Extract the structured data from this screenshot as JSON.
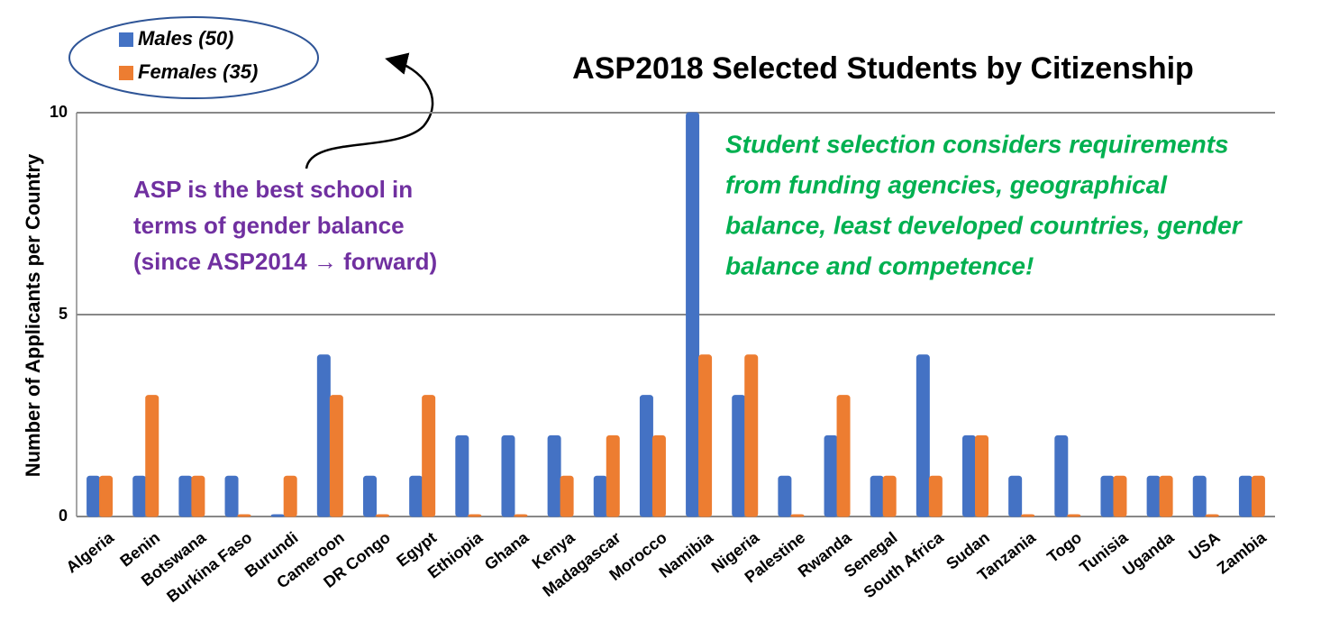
{
  "chart_data": {
    "type": "bar",
    "title": "ASP2018 Selected Students by Citizenship",
    "y_label": "Number of Applicants per Country",
    "categories": [
      "Algeria",
      "Benin",
      "Botswana",
      "Burkina Faso",
      "Burundi",
      "Cameroon",
      "DR Congo",
      "Egypt",
      "Ethiopia",
      "Ghana",
      "Kenya",
      "Madagascar",
      "Morocco",
      "Namibia",
      "Nigeria",
      "Palestine",
      "Rwanda",
      "Senegal",
      "South Africa",
      "Sudan",
      "Tanzania",
      "Togo",
      "Tunisia",
      "Uganda",
      "USA",
      "Zambia"
    ],
    "series": [
      {
        "name": "Males (50)",
        "color": "#4472c4",
        "values": [
          1,
          1,
          1,
          1,
          0,
          4,
          1,
          1,
          2,
          2,
          2,
          1,
          3,
          10,
          3,
          1,
          2,
          1,
          4,
          2,
          1,
          2,
          1,
          1,
          1,
          1
        ]
      },
      {
        "name": "Females (35)",
        "color": "#ed7d31",
        "values": [
          1,
          3,
          1,
          0,
          1,
          3,
          0,
          3,
          0,
          0,
          1,
          2,
          2,
          4,
          4,
          0,
          3,
          1,
          1,
          2,
          0,
          0,
          1,
          1,
          0,
          1
        ]
      }
    ],
    "ylim": [
      0,
      10
    ],
    "yticks": [
      0,
      5,
      10
    ],
    "grid": true,
    "annotations": [
      {
        "lines": [
          "ASP is the best school in",
          "terms of gender balance",
          "(since ASP2014 → forward)"
        ]
      },
      {
        "lines": [
          "Student selection considers requirements",
          "from funding agencies, geographical",
          "balance, least developed countries, gender",
          "balance and competence!"
        ]
      }
    ]
  }
}
